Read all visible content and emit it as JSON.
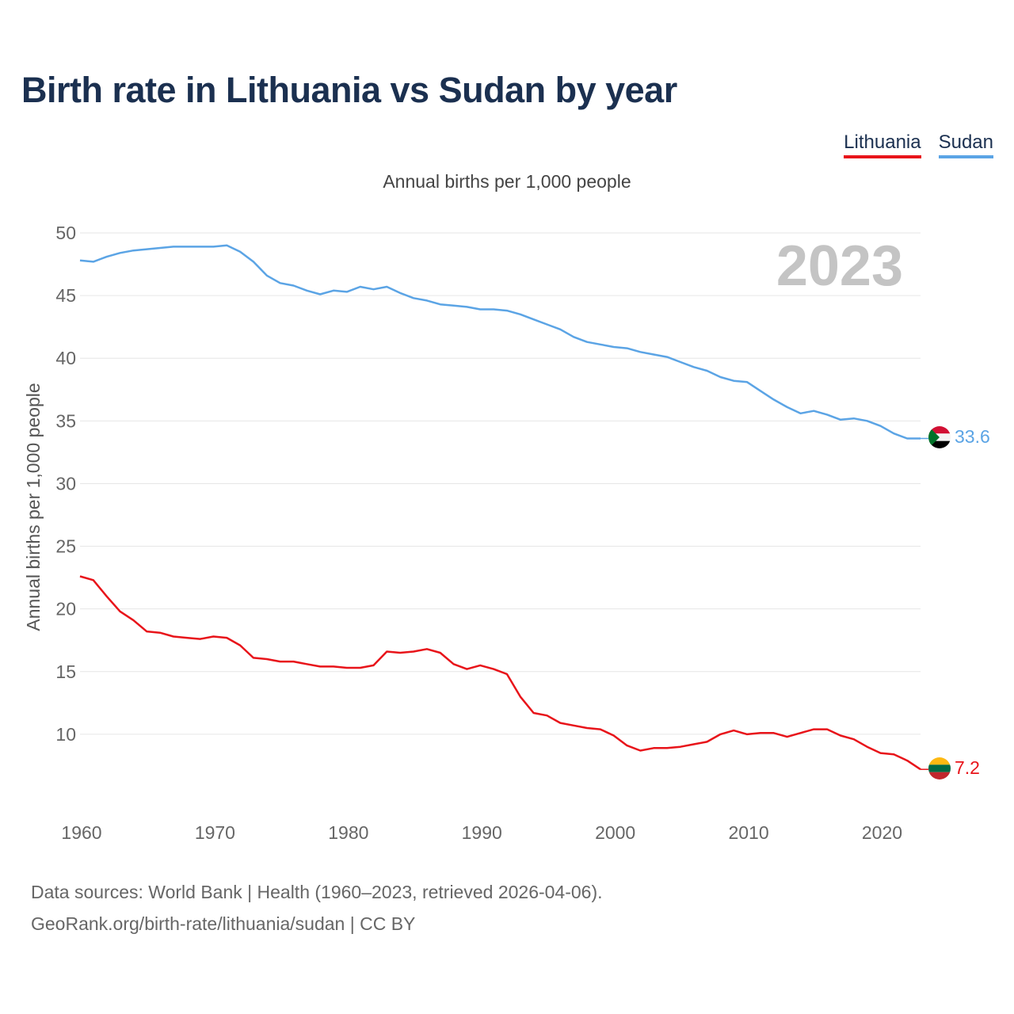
{
  "title": "Birth rate in Lithuania vs Sudan by year",
  "legend": [
    {
      "name": "Lithuania",
      "color": "#e8141a"
    },
    {
      "name": "Sudan",
      "color": "#5ba4e5"
    }
  ],
  "footer": {
    "line1": "Data sources: World Bank | Health (1960–2023, retrieved 2026-04-06).",
    "line2": "GeoRank.org/birth-rate/lithuania/sudan | CC BY"
  },
  "chart_data": {
    "type": "line",
    "title": "Birth rate in Lithuania vs Sudan by year",
    "subtitle": "Annual births per 1,000 people",
    "xlabel": "",
    "ylabel": "Annual births per 1,000 people",
    "year_label": "2023",
    "xlim": [
      1960,
      2023
    ],
    "ylim": [
      5,
      50
    ],
    "yticks": [
      10,
      15,
      20,
      25,
      30,
      35,
      40,
      45,
      50
    ],
    "xticks": [
      1960,
      1970,
      1980,
      1990,
      2000,
      2010,
      2020
    ],
    "x": [
      1960,
      1961,
      1962,
      1963,
      1964,
      1965,
      1966,
      1967,
      1968,
      1969,
      1970,
      1971,
      1972,
      1973,
      1974,
      1975,
      1976,
      1977,
      1978,
      1979,
      1980,
      1981,
      1982,
      1983,
      1984,
      1985,
      1986,
      1987,
      1988,
      1989,
      1990,
      1991,
      1992,
      1993,
      1994,
      1995,
      1996,
      1997,
      1998,
      1999,
      2000,
      2001,
      2002,
      2003,
      2004,
      2005,
      2006,
      2007,
      2008,
      2009,
      2010,
      2011,
      2012,
      2013,
      2014,
      2015,
      2016,
      2017,
      2018,
      2019,
      2020,
      2021,
      2022,
      2023
    ],
    "series": [
      {
        "name": "Sudan",
        "color": "#5ba4e5",
        "end_label": "33.6",
        "values": [
          47.8,
          47.7,
          48.1,
          48.4,
          48.6,
          48.7,
          48.8,
          48.9,
          48.9,
          48.9,
          48.9,
          49.0,
          48.5,
          47.7,
          46.6,
          46.0,
          45.8,
          45.4,
          45.1,
          45.4,
          45.3,
          45.7,
          45.5,
          45.7,
          45.2,
          44.8,
          44.6,
          44.3,
          44.2,
          44.1,
          43.9,
          43.9,
          43.8,
          43.5,
          43.1,
          42.7,
          42.3,
          41.7,
          41.3,
          41.1,
          40.9,
          40.8,
          40.5,
          40.3,
          40.1,
          39.7,
          39.3,
          39.0,
          38.5,
          38.2,
          38.1,
          37.4,
          36.7,
          36.1,
          35.6,
          35.8,
          35.5,
          35.1,
          35.2,
          35.0,
          34.6,
          34.0,
          33.6,
          33.6
        ]
      },
      {
        "name": "Lithuania",
        "color": "#e8141a",
        "end_label": "7.2",
        "values": [
          22.6,
          22.3,
          21.0,
          19.8,
          19.1,
          18.2,
          18.1,
          17.8,
          17.7,
          17.6,
          17.8,
          17.7,
          17.1,
          16.1,
          16.0,
          15.8,
          15.8,
          15.6,
          15.4,
          15.4,
          15.3,
          15.3,
          15.5,
          16.6,
          16.5,
          16.6,
          16.8,
          16.5,
          15.6,
          15.2,
          15.5,
          15.2,
          14.8,
          13.0,
          11.7,
          11.5,
          10.9,
          10.7,
          10.5,
          10.4,
          9.9,
          9.1,
          8.7,
          8.9,
          8.9,
          9.0,
          9.2,
          9.4,
          10.0,
          10.3,
          10.0,
          10.1,
          10.1,
          9.8,
          10.1,
          10.4,
          10.4,
          9.9,
          9.6,
          9.0,
          8.5,
          8.4,
          7.9,
          7.2
        ]
      }
    ]
  }
}
